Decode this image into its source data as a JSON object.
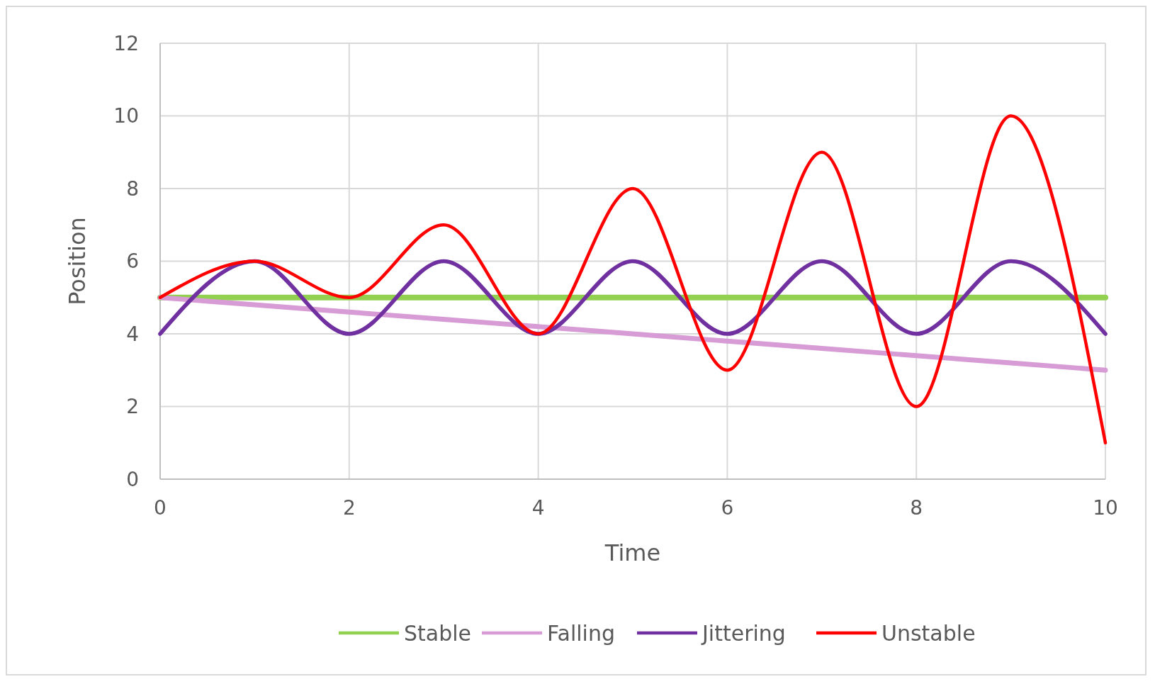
{
  "chart_data": {
    "type": "line",
    "xlabel": "Time",
    "ylabel": "Position",
    "x": [
      0,
      1,
      2,
      3,
      4,
      5,
      6,
      7,
      8,
      9,
      10
    ],
    "series": [
      {
        "name": "Stable",
        "color": "#92d050",
        "values": [
          5,
          5,
          5,
          5,
          5,
          5,
          5,
          5,
          5,
          5,
          5
        ]
      },
      {
        "name": "Falling",
        "color": "#d79bd6",
        "values": [
          5,
          4.8,
          4.6,
          4.4,
          4.2,
          4,
          3.8,
          3.6,
          3.4,
          3.2,
          3
        ]
      },
      {
        "name": "Jittering",
        "color": "#7030a0",
        "values": [
          4,
          6,
          4,
          6,
          4,
          6,
          4,
          6,
          4,
          6,
          4
        ]
      },
      {
        "name": "Unstable",
        "color": "#ff0000",
        "values": [
          5,
          6,
          5,
          7,
          4,
          8,
          3,
          9,
          2,
          10,
          1
        ]
      }
    ],
    "xlim": [
      0,
      10
    ],
    "xticks": [
      0,
      2,
      4,
      6,
      8,
      10
    ],
    "ylim": [
      0,
      12
    ],
    "yticks": [
      0,
      2,
      4,
      6,
      8,
      10,
      12
    ],
    "grid": true,
    "legend": "bottom",
    "marker": "none",
    "line_style": "solid"
  }
}
